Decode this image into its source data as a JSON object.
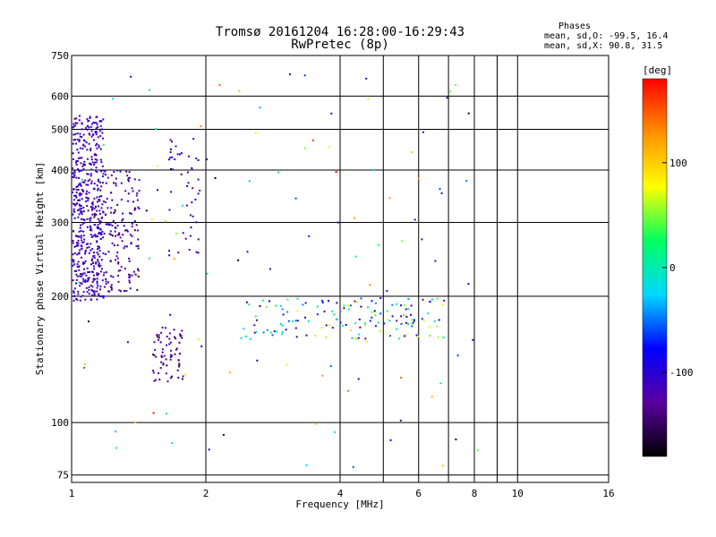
{
  "chart_data": {
    "type": "scatter",
    "title": "Tromsø 20161204 16:28:00-16:29:43",
    "subtitle": "RwPretec (8p)",
    "xlabel": "Frequency [MHz]",
    "ylabel": "Stationary phase Virtual Height [km]",
    "x_scale": "log",
    "y_scale": "log",
    "xlim": [
      1,
      16
    ],
    "ylim": [
      72,
      750
    ],
    "x_ticks": [
      1,
      2,
      4,
      6,
      8,
      10,
      16
    ],
    "x_tick_labels": [
      "1",
      "2",
      "4",
      "6",
      "8",
      "10",
      "16"
    ],
    "x_minor_gridlines": [
      5,
      7,
      9
    ],
    "y_ticks": [
      75,
      100,
      200,
      300,
      400,
      500,
      600,
      750
    ],
    "y_tick_labels": [
      "75",
      "100",
      "200",
      "300",
      "400",
      "500",
      "600",
      "750"
    ],
    "grid": true,
    "phases_header": "Phases",
    "stats": [
      "mean, sd,O: -99.5, 16.4",
      "mean, sd,X:  90.8, 31.5"
    ],
    "colorbar": {
      "label": "[deg]",
      "range": [
        -180,
        180
      ],
      "ticks": [
        100,
        0,
        -100
      ],
      "tick_labels": [
        "100",
        "0",
        "-100"
      ],
      "colors": [
        "#000000",
        "#5a00a0",
        "#0000ff",
        "#00d8ff",
        "#00ff60",
        "#ffff00",
        "#ff9000",
        "#ff0000"
      ]
    },
    "clusters": [
      {
        "name": "F-layer low-frequency trace",
        "freq": [
          1.0,
          1.18
        ],
        "height": [
          195,
          540
        ],
        "phase": [
          -130,
          -95
        ],
        "count": 520
      },
      {
        "name": "F-layer trace 1.2-1.4 MHz",
        "freq": [
          1.18,
          1.42
        ],
        "height": [
          205,
          400
        ],
        "phase": [
          -150,
          -100
        ],
        "count": 160
      },
      {
        "name": "F-layer trace near 1.8 MHz",
        "freq": [
          1.65,
          1.95
        ],
        "height": [
          250,
          480
        ],
        "phase": [
          -140,
          -90
        ],
        "count": 45
      },
      {
        "name": "low-height cluster near 1.6 MHz",
        "freq": [
          1.52,
          1.78
        ],
        "height": [
          125,
          170
        ],
        "phase": [
          -160,
          -110
        ],
        "count": 70
      },
      {
        "name": "E-region trace",
        "freq": [
          2.4,
          6.9
        ],
        "height": [
          158,
          198
        ],
        "phase": [
          -140,
          80
        ],
        "count": 150
      },
      {
        "name": "scattered points",
        "freq": [
          1.0,
          8.2
        ],
        "height": [
          76,
          680
        ],
        "phase": [
          -180,
          180
        ],
        "count": 110
      }
    ]
  }
}
